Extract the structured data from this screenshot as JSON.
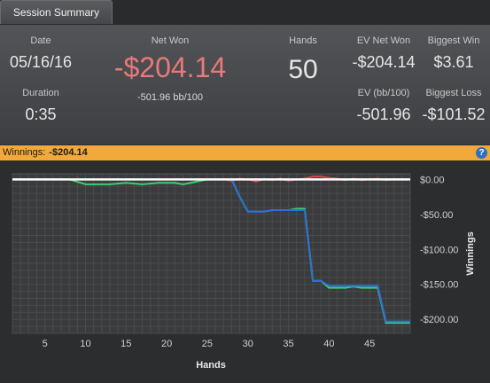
{
  "tab": {
    "label": "Session Summary"
  },
  "summary": {
    "date_label": "Date",
    "date_value": "05/16/16",
    "duration_label": "Duration",
    "duration_value": "0:35",
    "net_won_label": "Net Won",
    "net_won_value": "-$204.14",
    "net_won_sub": "-501.96 bb/100",
    "hands_label": "Hands",
    "hands_value": "50",
    "ev_net_won_label": "EV Net Won",
    "ev_net_won_value": "-$204.14",
    "ev_bb_label": "EV (bb/100)",
    "ev_bb_value": "-501.96",
    "biggest_win_label": "Biggest Win",
    "biggest_win_value": "$3.61",
    "biggest_loss_label": "Biggest Loss",
    "biggest_loss_value": "-$101.52"
  },
  "strip": {
    "label": "Winnings:",
    "value": "-$204.14",
    "help_icon": "?"
  },
  "colors": {
    "negative": "#e9797a",
    "accent_strip": "#f2a93b",
    "help": "#2f6fc0"
  },
  "chart_data": {
    "type": "line",
    "xlabel": "Hands",
    "ylabel": "Winnings",
    "xlim": [
      1,
      50
    ],
    "ylim": [
      -220,
      8
    ],
    "x_ticks": [
      5,
      10,
      15,
      20,
      25,
      30,
      35,
      40,
      45
    ],
    "y_ticks": [
      0,
      -50,
      -100,
      -150,
      -200
    ],
    "y_tick_labels": [
      "$0.00",
      "-$50.00",
      "-$100.00",
      "-$150.00",
      "-$200.00"
    ],
    "grid": true,
    "series": [
      {
        "color": "#ffffff",
        "x": [
          1,
          50
        ],
        "y": [
          0,
          0
        ]
      },
      {
        "color": "#3ad16f",
        "x": [
          1,
          8,
          10,
          13,
          15,
          17,
          19,
          21,
          22,
          23,
          25,
          27,
          28,
          29,
          30,
          31,
          32,
          33,
          34,
          35,
          36,
          37,
          38,
          39,
          40,
          41,
          42,
          43,
          44,
          45,
          46,
          47,
          48,
          50
        ],
        "y": [
          0,
          0,
          -7,
          -7,
          -5,
          -7,
          -5,
          -5,
          -7,
          -5,
          0,
          0,
          0,
          -25,
          -46,
          -46,
          -46,
          -44,
          -44,
          -44,
          -42,
          -42,
          -145,
          -145,
          -155,
          -155,
          -155,
          -153,
          -155,
          -155,
          -155,
          -205,
          -205,
          -205
        ]
      },
      {
        "color": "#2d6fd6",
        "x": [
          28,
          29,
          30,
          31,
          32,
          33,
          34,
          35,
          36,
          37,
          38,
          39,
          40,
          41,
          42,
          43,
          44,
          45,
          46,
          47,
          48,
          50
        ],
        "y": [
          0,
          -25,
          -46,
          -46,
          -46,
          -44,
          -44,
          -44,
          -44,
          -44,
          -145,
          -145,
          -152,
          -152,
          -152,
          -152,
          -152,
          -152,
          -152,
          -203,
          -203,
          -203
        ]
      },
      {
        "color": "#d24a4a",
        "x": [
          27,
          28,
          29,
          30,
          31,
          32,
          33,
          34,
          35,
          36,
          37,
          38,
          39,
          40,
          41,
          42,
          43,
          44,
          45,
          46,
          47,
          48,
          50
        ],
        "y": [
          0,
          -2,
          1,
          0,
          -3,
          0,
          -1,
          1,
          -2,
          0,
          1,
          4,
          4,
          2,
          1,
          -1,
          1,
          -1,
          0,
          1,
          -1,
          0,
          0
        ]
      }
    ]
  }
}
